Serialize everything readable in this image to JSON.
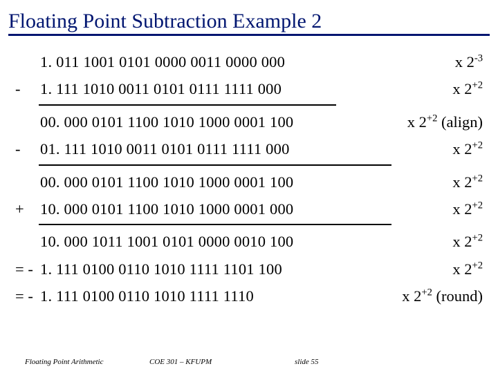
{
  "title": "Floating Point Subtraction Example 2",
  "colors": {
    "title_color": "#001570",
    "title_underline": "#001570",
    "text_color": "#000000",
    "rule_color": "#000000",
    "background": "#ffffff"
  },
  "typography": {
    "title_font": "Comic Sans MS",
    "title_fontsize": 30,
    "body_font": "Times New Roman",
    "body_fontsize": 22.5,
    "footer_fontsize": 11
  },
  "rows": [
    {
      "op": "",
      "digits": "1. 011 1001 0101 0000 0011 0000 000",
      "exp_base": "x 2",
      "exp_sup": "-3",
      "exp_tail": ""
    },
    {
      "op": "-",
      "digits": "1. 111 1010 0011 0101 0111 1111  000",
      "exp_base": "x 2",
      "exp_sup": "+2",
      "exp_tail": ""
    },
    {
      "op": "",
      "digits": "00. 000 0101 1100 1010 1000 0001 100",
      "exp_base": "x 2",
      "exp_sup": "+2",
      "exp_tail": " (align)"
    },
    {
      "op": "-",
      "digits": "01. 111 1010 0011 0101 0111 1111 000",
      "exp_base": "x 2",
      "exp_sup": "+2",
      "exp_tail": ""
    },
    {
      "op": "",
      "digits": "00. 000 0101 1100 1010 1000 0001 100",
      "exp_base": "x 2",
      "exp_sup": "+2",
      "exp_tail": ""
    },
    {
      "op": "+",
      "digits": "10. 000 0101 1100 1010 1000 0001 000",
      "exp_base": "x 2",
      "exp_sup": "+2",
      "exp_tail": ""
    },
    {
      "op": "",
      "digits": "10. 000 1011 1001 0101 0000 0010 100",
      "exp_base": "x 2",
      "exp_sup": "+2",
      "exp_tail": ""
    },
    {
      "op": "= -",
      "digits": "1. 111 0100 0110 1010 1111 1101 100",
      "exp_base": "x 2",
      "exp_sup": "+2",
      "exp_tail": ""
    },
    {
      "op": "= -",
      "digits": "1. 111 0100 0110 1010 1111 1110",
      "exp_base": "x 2",
      "exp_sup": "+2",
      "exp_tail": " (round)"
    }
  ],
  "rules_after_rows": [
    1,
    3,
    5
  ],
  "footer": {
    "left": "Floating Point Arithmetic",
    "center": "COE 301 – KFUPM",
    "right": "slide 55"
  }
}
